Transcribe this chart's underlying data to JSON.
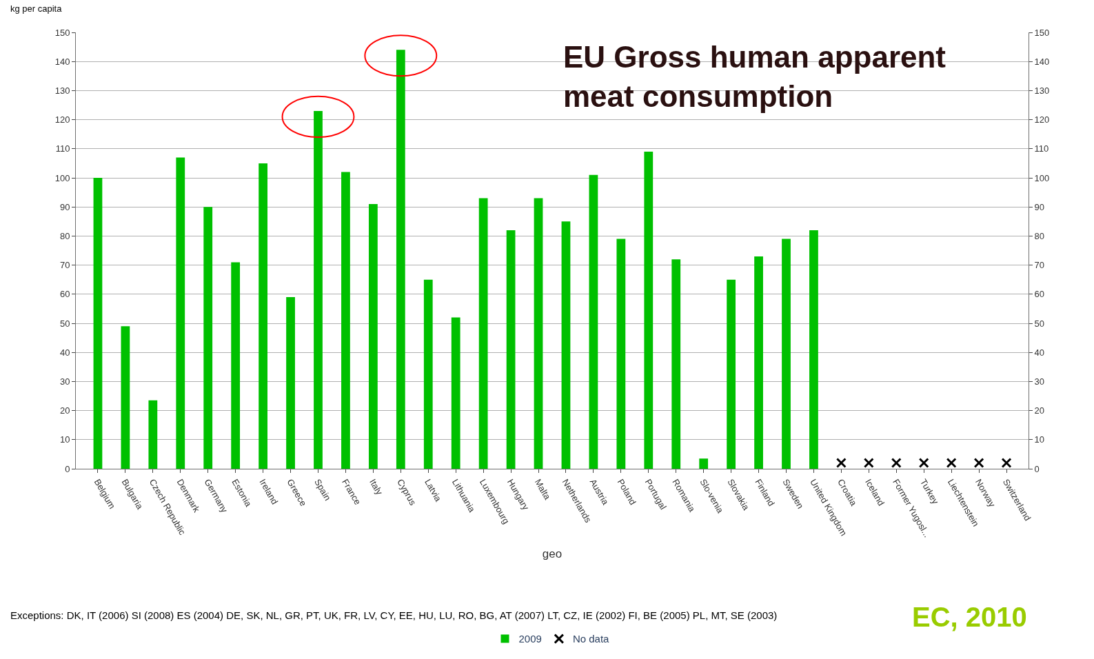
{
  "chart_data": {
    "type": "bar",
    "title": "EU Gross human apparent meat consumption",
    "ylabel": "kg per capita",
    "xlabel": "geo",
    "categories": [
      "Belgium",
      "Bulgaria",
      "Czech Republic",
      "Denmark",
      "Germany",
      "Estonia",
      "Ireland",
      "Greece",
      "Spain",
      "France",
      "Italy",
      "Cyprus",
      "Latvia",
      "Lithuania",
      "Luxembourg",
      "Hungary",
      "Malta",
      "Netherlands",
      "Austria",
      "Poland",
      "Portugal",
      "Romania",
      "Slo-venia",
      "Slovakia",
      "Finland",
      "Sweden",
      "United Kingdom",
      "Croatia",
      "Iceland",
      "Former Yugosl...",
      "Turkey",
      "Liechtenstein",
      "Norway",
      "Switzerland"
    ],
    "series": [
      {
        "name": "2009",
        "color": "#00c000",
        "values": [
          100,
          49,
          23.5,
          107,
          90,
          71,
          105,
          59,
          123,
          102,
          91,
          144,
          65,
          52,
          93,
          82,
          93,
          85,
          101,
          79,
          109,
          72,
          3.5,
          65,
          73,
          79,
          82,
          null,
          null,
          null,
          null,
          null,
          null,
          null
        ]
      },
      {
        "name": "No data",
        "type": "scatter",
        "marker": "cross",
        "color": "#000000",
        "values": [
          null,
          null,
          null,
          null,
          null,
          null,
          null,
          null,
          null,
          null,
          null,
          null,
          null,
          null,
          null,
          null,
          null,
          null,
          null,
          null,
          null,
          null,
          null,
          null,
          null,
          null,
          null,
          2,
          2,
          2,
          2,
          2,
          2,
          2
        ]
      }
    ],
    "ylim": [
      0,
      150
    ],
    "yticks": [
      0,
      10,
      20,
      30,
      40,
      50,
      60,
      70,
      80,
      90,
      100,
      110,
      120,
      130,
      140,
      150
    ],
    "y2lim": [
      0,
      150
    ],
    "y2ticks": [
      0,
      10,
      20,
      30,
      40,
      50,
      60,
      70,
      80,
      90,
      100,
      110,
      120,
      130,
      140,
      150
    ],
    "grid": "y",
    "legend": "bottom",
    "annotations": [
      "Exceptions: DK, IT (2006) SI (2008) ES (2004) DE, SK, NL, GR, PT, UK, FR, LV, CY, EE, HU, LU, RO, BG, AT (2007) LT, CZ, IE (2002) FI, BE (2005) PL, MT, SE (2003)",
      "EC, 2010"
    ]
  }
}
